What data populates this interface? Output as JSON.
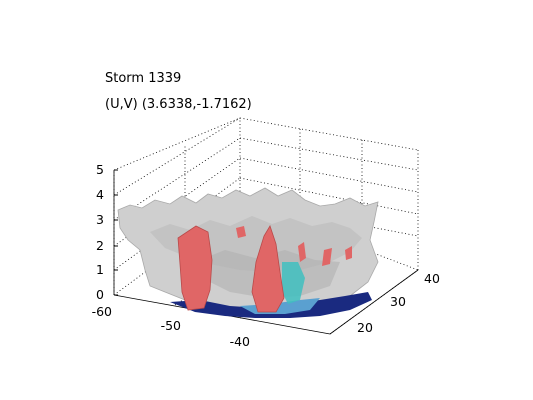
{
  "chart_data": {
    "type": "surface3d",
    "title": "Storm 1339",
    "subtitle": "(U,V) (3.6338,-1.7162)",
    "x_ticks": [
      "-60",
      "-50",
      "-40"
    ],
    "y_ticks": [
      "20",
      "30",
      "40"
    ],
    "z_ticks": [
      "0",
      "1",
      "2",
      "3",
      "4",
      "5"
    ],
    "xlim": [
      -60,
      -35
    ],
    "ylim": [
      15,
      42
    ],
    "zlim": [
      0,
      5
    ],
    "grid": true,
    "isosurfaces": [
      {
        "color": "#c8c8c8",
        "description": "outer surface"
      },
      {
        "color": "#e06666",
        "description": "inner columns"
      },
      {
        "color": "#40c0c0",
        "description": "lower core"
      },
      {
        "color": "#1a2a80",
        "description": "base footprint"
      }
    ]
  }
}
